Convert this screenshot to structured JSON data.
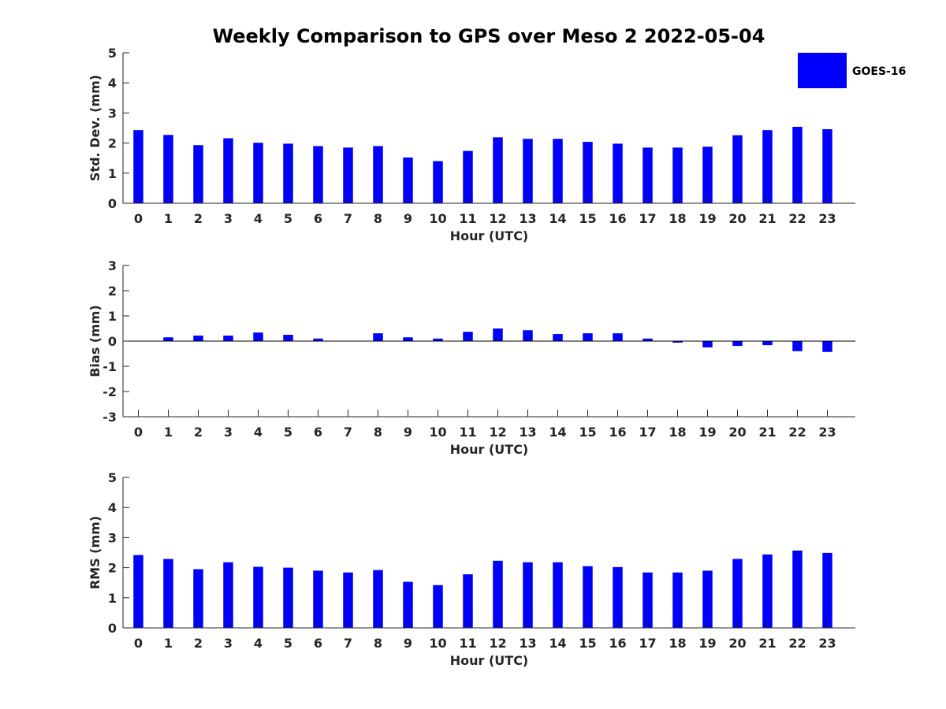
{
  "figure": {
    "title": "Weekly Comparison to GPS over Meso 2 2022-05-04"
  },
  "legend": {
    "label": "GOES-16",
    "color": "#0000ff",
    "position": "top-right"
  },
  "chart_data": [
    {
      "type": "bar",
      "xlabel": "Hour (UTC)",
      "ylabel": "Std. Dev. (mm)",
      "ylim": [
        0,
        5
      ],
      "yticks": [
        "0",
        "1",
        "2",
        "3",
        "4",
        "5"
      ],
      "categories": [
        "0",
        "1",
        "2",
        "3",
        "4",
        "5",
        "6",
        "7",
        "8",
        "9",
        "10",
        "11",
        "12",
        "13",
        "14",
        "15",
        "16",
        "17",
        "18",
        "19",
        "20",
        "21",
        "22",
        "23"
      ],
      "series": [
        {
          "name": "GOES-16",
          "values": [
            2.43,
            2.27,
            1.93,
            2.16,
            2.01,
            1.98,
            1.9,
            1.85,
            1.9,
            1.52,
            1.4,
            1.74,
            2.19,
            2.14,
            2.14,
            2.04,
            1.98,
            1.85,
            1.85,
            1.88,
            2.26,
            2.43,
            2.54,
            2.46
          ]
        }
      ]
    },
    {
      "type": "bar",
      "xlabel": "Hour (UTC)",
      "ylabel": "Bias (mm)",
      "ylim": [
        -3,
        3
      ],
      "yticks": [
        "-3",
        "-2",
        "-1",
        "0",
        "1",
        "2",
        "3"
      ],
      "categories": [
        "0",
        "1",
        "2",
        "3",
        "4",
        "5",
        "6",
        "7",
        "8",
        "9",
        "10",
        "11",
        "12",
        "13",
        "14",
        "15",
        "16",
        "17",
        "18",
        "19",
        "20",
        "21",
        "22",
        "23"
      ],
      "series": [
        {
          "name": "GOES-16",
          "values": [
            0.0,
            0.15,
            0.22,
            0.22,
            0.34,
            0.25,
            0.1,
            0.0,
            0.31,
            0.15,
            0.1,
            0.37,
            0.5,
            0.43,
            0.28,
            0.31,
            0.31,
            0.1,
            -0.06,
            -0.25,
            -0.19,
            -0.16,
            -0.4,
            -0.43
          ]
        }
      ]
    },
    {
      "type": "bar",
      "xlabel": "Hour (UTC)",
      "ylabel": "RMS (mm)",
      "ylim": [
        0,
        5
      ],
      "yticks": [
        "0",
        "1",
        "2",
        "3",
        "4",
        "5"
      ],
      "categories": [
        "0",
        "1",
        "2",
        "3",
        "4",
        "5",
        "6",
        "7",
        "8",
        "9",
        "10",
        "11",
        "12",
        "13",
        "14",
        "15",
        "16",
        "17",
        "18",
        "19",
        "20",
        "21",
        "22",
        "23"
      ],
      "series": [
        {
          "name": "GOES-16",
          "values": [
            2.42,
            2.29,
            1.95,
            2.18,
            2.03,
            2.0,
            1.9,
            1.84,
            1.92,
            1.53,
            1.42,
            1.78,
            2.23,
            2.18,
            2.18,
            2.05,
            2.02,
            1.84,
            1.84,
            1.9,
            2.29,
            2.44,
            2.57,
            2.49
          ]
        }
      ]
    }
  ]
}
